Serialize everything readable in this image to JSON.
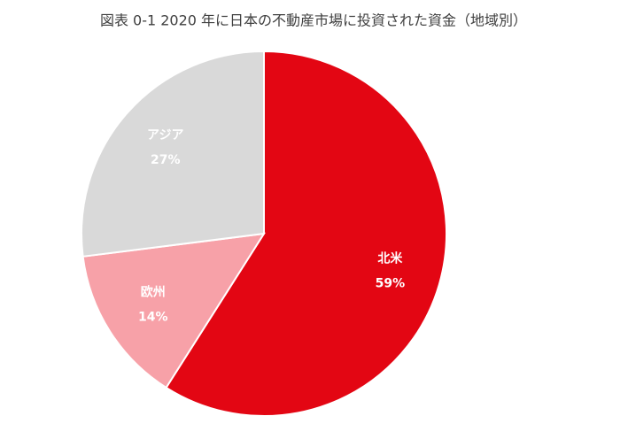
{
  "chart_data": {
    "type": "pie",
    "title": "図表 0-1 2020 年に日本の不動産市場に投資された資金（地域別）",
    "categories": [
      "北米",
      "欧州",
      "アジア"
    ],
    "values": [
      59,
      14,
      27
    ],
    "value_labels": [
      "59%",
      "14%",
      "27%"
    ],
    "colors": [
      "#e30613",
      "#f7a1a8",
      "#d9d9d9"
    ]
  }
}
